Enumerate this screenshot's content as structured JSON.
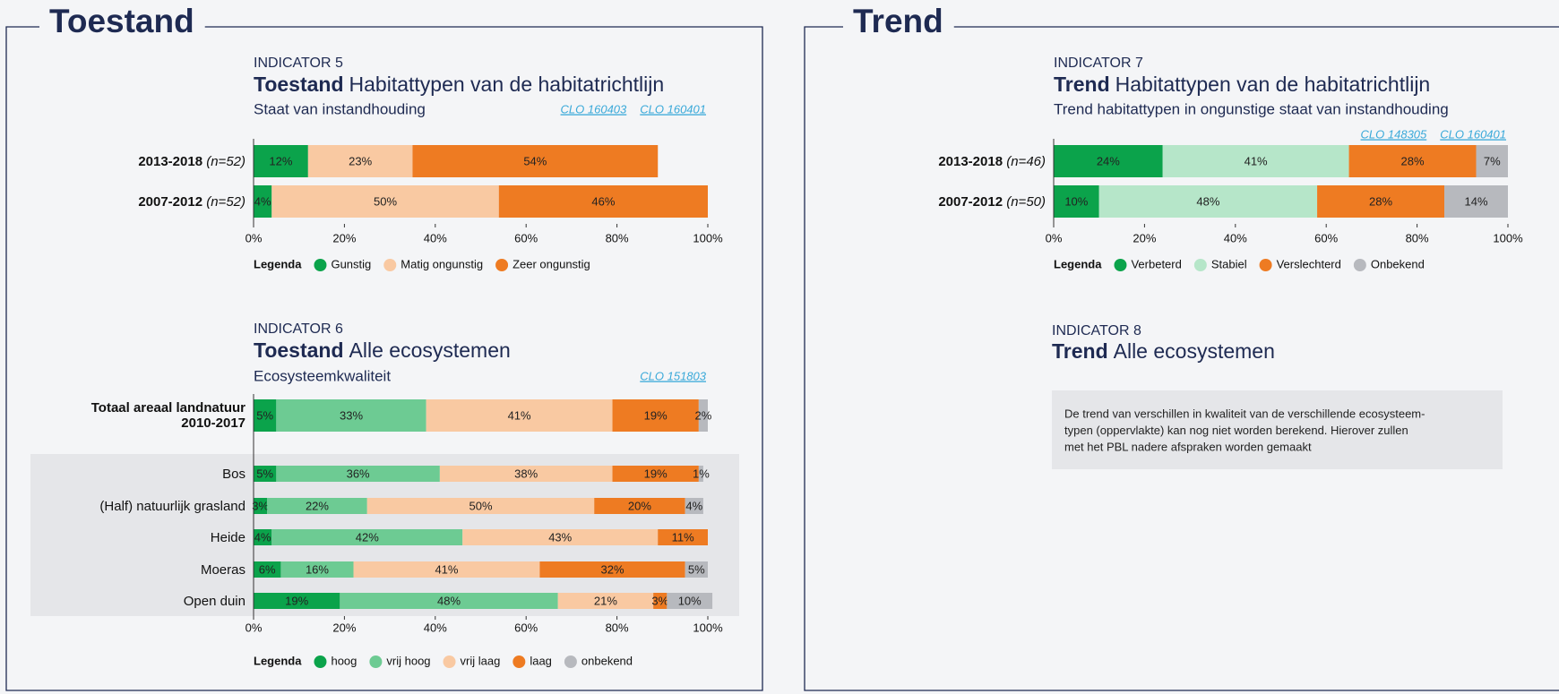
{
  "sections": [
    "Toestand",
    "Trend"
  ],
  "chart_data": [
    {
      "type": "bar",
      "orientation": "horizontal",
      "stacked": true,
      "indicator": "INDICATOR 5",
      "title_bold": "Toestand",
      "title": "Habitattypen van de habitatrichtlijn",
      "subtitle": "Staat van instandhouding",
      "links": [
        "CLO 160403",
        "CLO 160401"
      ],
      "categories": [
        "2013-2018",
        "2007-2012"
      ],
      "category_notes": [
        "(n=52)",
        "(n=52)"
      ],
      "series": [
        {
          "name": "Gunstig",
          "color": "#0ba34b",
          "values": [
            12,
            4
          ],
          "value_labels": [
            "12%",
            "4%"
          ]
        },
        {
          "name": "Matig ongunstig",
          "color": "#f9c9a2",
          "values": [
            23,
            50
          ],
          "value_labels": [
            "23%",
            "50%"
          ]
        },
        {
          "name": "Zeer ongunstig",
          "color": "#ee7b22",
          "values": [
            54,
            46
          ],
          "value_labels": [
            "54%",
            "46%"
          ]
        }
      ],
      "xlim": [
        0,
        100
      ],
      "xticks": [
        {
          "value": 0,
          "label": "0%"
        },
        {
          "value": 20,
          "label": "20%"
        },
        {
          "value": 40,
          "label": "40%"
        },
        {
          "value": 60,
          "label": "60%"
        },
        {
          "value": 80,
          "label": "80%"
        },
        {
          "value": 100,
          "label": "100%"
        }
      ],
      "legend_title": "Legenda"
    },
    {
      "type": "bar",
      "orientation": "horizontal",
      "stacked": true,
      "indicator": "INDICATOR 7",
      "title_bold": "Trend",
      "title": "Habitattypen van de habitatrichtlijn",
      "subtitle": "Trend habitattypen in ongunstige staat van instandhouding",
      "links": [
        "CLO 148305",
        "CLO 160401"
      ],
      "categories": [
        "2013-2018",
        "2007-2012"
      ],
      "category_notes": [
        "(n=46)",
        "(n=50)"
      ],
      "series": [
        {
          "name": "Verbeterd",
          "color": "#0ba34b",
          "values": [
            24,
            10
          ],
          "value_labels": [
            "24%",
            "10%"
          ]
        },
        {
          "name": "Stabiel",
          "color": "#b6e6c9",
          "values": [
            41,
            48
          ],
          "value_labels": [
            "41%",
            "48%"
          ]
        },
        {
          "name": "Verslechterd",
          "color": "#ee7b22",
          "values": [
            28,
            28
          ],
          "value_labels": [
            "28%",
            "28%"
          ]
        },
        {
          "name": "Onbekend",
          "color": "#b7b9be",
          "values": [
            7,
            14
          ],
          "value_labels": [
            "7%",
            "14%"
          ]
        }
      ],
      "xlim": [
        0,
        100
      ],
      "xticks": [
        {
          "value": 0,
          "label": "0%"
        },
        {
          "value": 20,
          "label": "20%"
        },
        {
          "value": 40,
          "label": "40%"
        },
        {
          "value": 60,
          "label": "60%"
        },
        {
          "value": 80,
          "label": "80%"
        },
        {
          "value": 100,
          "label": "100%"
        }
      ],
      "legend_title": "Legenda"
    },
    {
      "type": "bar",
      "orientation": "horizontal",
      "stacked": true,
      "indicator": "INDICATOR 6",
      "title_bold": "Toestand",
      "title": "Alle ecosystemen",
      "subtitle": "Ecosysteemkwaliteit",
      "links": [
        "CLO 151803"
      ],
      "categories": [
        "Totaal areaal landnatuur 2010-2017",
        "Bos",
        "(Half) natuurlijk grasland",
        "Heide",
        "Moeras",
        "Open duin"
      ],
      "series": [
        {
          "name": "hoog",
          "color": "#0ba34b",
          "values": [
            5,
            5,
            3,
            4,
            6,
            19
          ],
          "value_labels": [
            "5%",
            "5%",
            "3%",
            "4%",
            "6%",
            "19%"
          ]
        },
        {
          "name": "vrij hoog",
          "color": "#6dcb93",
          "values": [
            33,
            36,
            22,
            42,
            16,
            48
          ],
          "value_labels": [
            "33%",
            "36%",
            "22%",
            "42%",
            "16%",
            "48%"
          ]
        },
        {
          "name": "vrij laag",
          "color": "#f9c9a2",
          "values": [
            41,
            38,
            50,
            43,
            41,
            21
          ],
          "value_labels": [
            "41%",
            "38%",
            "50%",
            "43%",
            "41%",
            "21%"
          ]
        },
        {
          "name": "laag",
          "color": "#ee7b22",
          "values": [
            19,
            19,
            20,
            11,
            32,
            3
          ],
          "value_labels": [
            "19%",
            "19%",
            "20%",
            "11%",
            "32%",
            "3%"
          ]
        },
        {
          "name": "onbekend",
          "color": "#b7b9be",
          "values": [
            2,
            1,
            4,
            null,
            5,
            10
          ],
          "value_labels": [
            "2%",
            "1%",
            "4%",
            null,
            "5%",
            "10%"
          ]
        }
      ],
      "xlim": [
        0,
        100
      ],
      "xticks": [
        {
          "value": 0,
          "label": "0%"
        },
        {
          "value": 20,
          "label": "20%"
        },
        {
          "value": 40,
          "label": "40%"
        },
        {
          "value": 60,
          "label": "60%"
        },
        {
          "value": 80,
          "label": "80%"
        },
        {
          "value": 100,
          "label": "100%"
        }
      ],
      "legend_title": "Legenda"
    }
  ],
  "indicator_8": {
    "indicator": "INDICATOR 8",
    "title_bold": "Trend",
    "title": "Alle ecosystemen",
    "note": [
      "De trend van verschillen in kwaliteit van de verschillende ecosysteem-",
      "typen (oppervlakte) kan nog niet worden berekend. Hierover zullen",
      "met het PBL nadere afspraken worden gemaakt"
    ]
  }
}
